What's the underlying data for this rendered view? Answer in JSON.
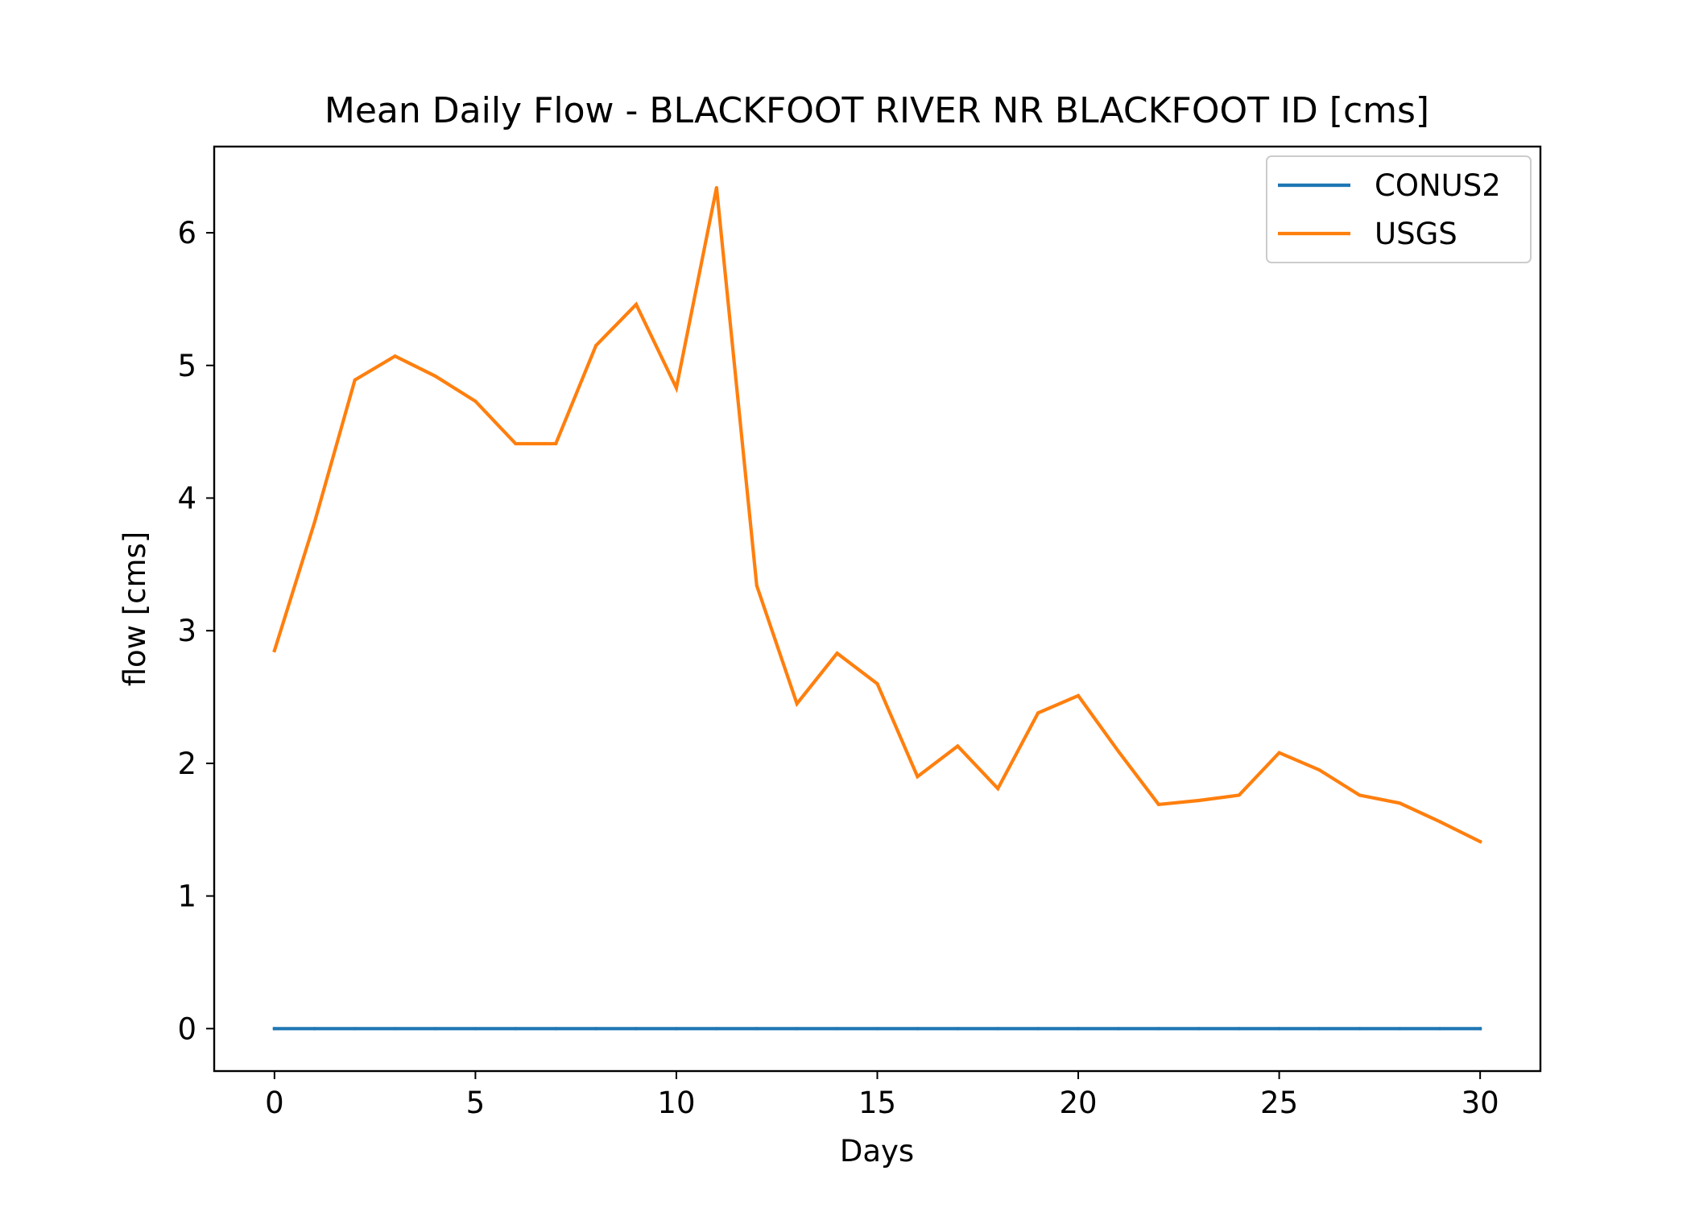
{
  "chart_data": {
    "type": "line",
    "title": "Mean Daily Flow - BLACKFOOT RIVER NR BLACKFOOT ID [cms]",
    "xlabel": "Days",
    "ylabel": "flow [cms]",
    "xlim": [
      -1.5,
      31.5
    ],
    "ylim": [
      -0.32,
      6.65
    ],
    "xticks": [
      0,
      5,
      10,
      15,
      20,
      25,
      30
    ],
    "yticks": [
      0,
      1,
      2,
      3,
      4,
      5,
      6
    ],
    "grid": false,
    "legend_position": "top-right",
    "x": [
      0,
      1,
      2,
      3,
      4,
      5,
      6,
      7,
      8,
      9,
      10,
      11,
      12,
      13,
      14,
      15,
      16,
      17,
      18,
      19,
      20,
      21,
      22,
      23,
      24,
      25,
      26,
      27,
      28,
      29,
      30
    ],
    "series": [
      {
        "name": "CONUS2",
        "color": "#1f77b4",
        "values": [
          0,
          0,
          0,
          0,
          0,
          0,
          0,
          0,
          0,
          0,
          0,
          0,
          0,
          0,
          0,
          0,
          0,
          0,
          0,
          0,
          0,
          0,
          0,
          0,
          0,
          0,
          0,
          0,
          0,
          0,
          0
        ]
      },
      {
        "name": "USGS",
        "color": "#ff7f0e",
        "values": [
          2.85,
          3.82,
          4.89,
          5.07,
          4.92,
          4.73,
          4.41,
          4.41,
          5.15,
          5.46,
          4.83,
          6.34,
          3.34,
          2.45,
          2.83,
          2.6,
          1.9,
          2.13,
          1.81,
          2.38,
          2.51,
          2.09,
          1.69,
          1.72,
          1.76,
          2.08,
          1.95,
          1.76,
          1.7,
          1.56,
          1.41
        ]
      }
    ]
  }
}
